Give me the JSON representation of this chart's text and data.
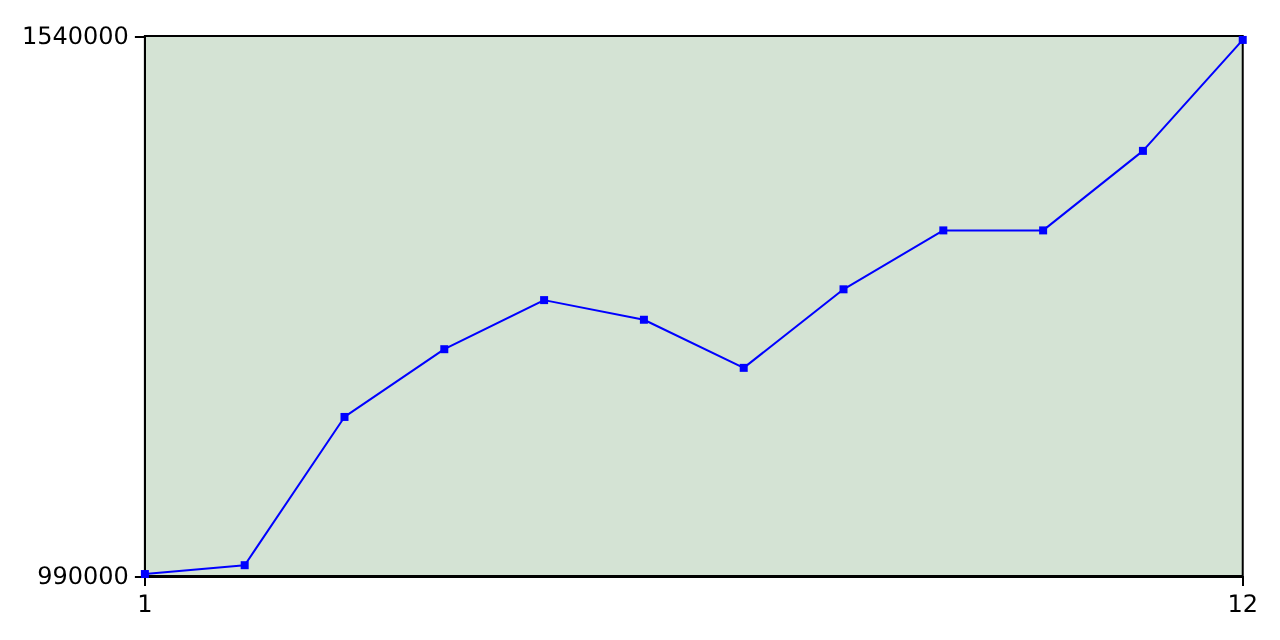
{
  "chart_data": {
    "type": "line",
    "x": [
      1,
      2,
      3,
      4,
      5,
      6,
      7,
      8,
      9,
      10,
      11,
      12
    ],
    "series": [
      {
        "color": "#0000ff",
        "values": [
          992000,
          1001000,
          1152000,
          1221000,
          1271000,
          1251000,
          1202000,
          1282000,
          1342000,
          1342000,
          1423000,
          1536000
        ]
      }
    ],
    "xlim": [
      1,
      12
    ],
    "xticks": [
      1,
      12
    ],
    "ylim": [
      990000,
      1540000
    ],
    "yticks": [
      990000,
      1540000
    ],
    "grid": false,
    "marker": "square",
    "line_style": "solid"
  }
}
